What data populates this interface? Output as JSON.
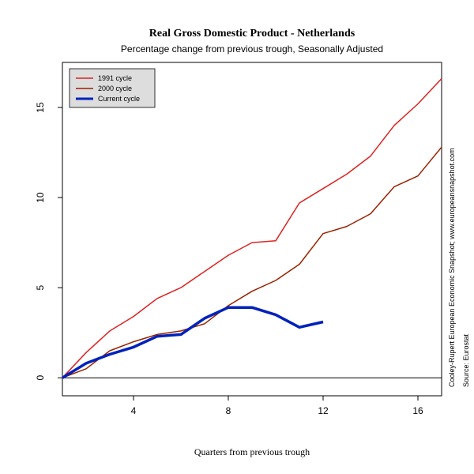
{
  "chart_data": {
    "type": "line",
    "title": "Real Gross Domestic Product - Netherlands",
    "subtitle": "Percentage change from previous trough, Seasonally Adjusted",
    "xlabel": "Quarters from previous trough",
    "ylabel": "",
    "xlim": [
      1,
      17
    ],
    "ylim": [
      -1,
      17.5
    ],
    "x_ticks": [
      4,
      8,
      12,
      16
    ],
    "y_ticks": [
      0,
      5,
      10,
      15
    ],
    "grid": false,
    "zero_line": true,
    "legend_position": "top-left",
    "series": [
      {
        "name": "1991 cycle",
        "color": "#dd2222",
        "line_width": "normal",
        "x": [
          1,
          2,
          3,
          4,
          5,
          6,
          7,
          8,
          9,
          10,
          11,
          12,
          13,
          14,
          15,
          16,
          17
        ],
        "y": [
          0,
          1.4,
          2.6,
          3.4,
          4.4,
          5.0,
          5.9,
          6.8,
          7.5,
          7.6,
          9.7,
          10.5,
          11.3,
          12.3,
          14.0,
          15.2,
          16.6
        ]
      },
      {
        "name": "2000 cycle",
        "color": "#992200",
        "line_width": "normal",
        "x": [
          1,
          2,
          3,
          4,
          5,
          6,
          7,
          8,
          9,
          10,
          11,
          12,
          13,
          14,
          15,
          16,
          17
        ],
        "y": [
          0,
          0.5,
          1.5,
          2.0,
          2.4,
          2.6,
          3.0,
          4.0,
          4.8,
          5.4,
          6.3,
          8.0,
          8.4,
          9.1,
          10.6,
          11.2,
          12.8
        ]
      },
      {
        "name": "Current cycle",
        "color": "#0022bb",
        "line_width": "thick",
        "x": [
          1,
          2,
          3,
          4,
          5,
          6,
          7,
          8,
          9,
          10,
          11,
          12
        ],
        "y": [
          0,
          0.8,
          1.3,
          1.7,
          2.3,
          2.4,
          3.3,
          3.9,
          3.9,
          3.5,
          2.8,
          3.1
        ]
      }
    ]
  },
  "side_note": {
    "credit": "Cooley-Rupert European Economic Snapshot; www.europeansnapshot.com",
    "source": "Source: Eurostat"
  }
}
